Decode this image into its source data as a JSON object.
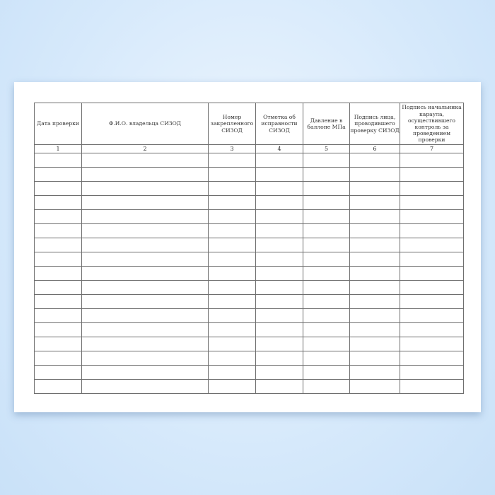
{
  "table": {
    "headers": [
      "Дата проверки",
      "Ф.И.О. владельца СИЗОД",
      "Номер закрепленного СИЗОД",
      "Отметка об исправности СИЗОД",
      "Давление в баллоне МПа",
      "Подпись лица, проводившего проверку СИЗОД",
      "Подпись начальника караула, осуществившего контроль за проведением проверки"
    ],
    "column_numbers": [
      "1",
      "2",
      "3",
      "4",
      "5",
      "6",
      "7"
    ],
    "empty_rows": 17
  }
}
